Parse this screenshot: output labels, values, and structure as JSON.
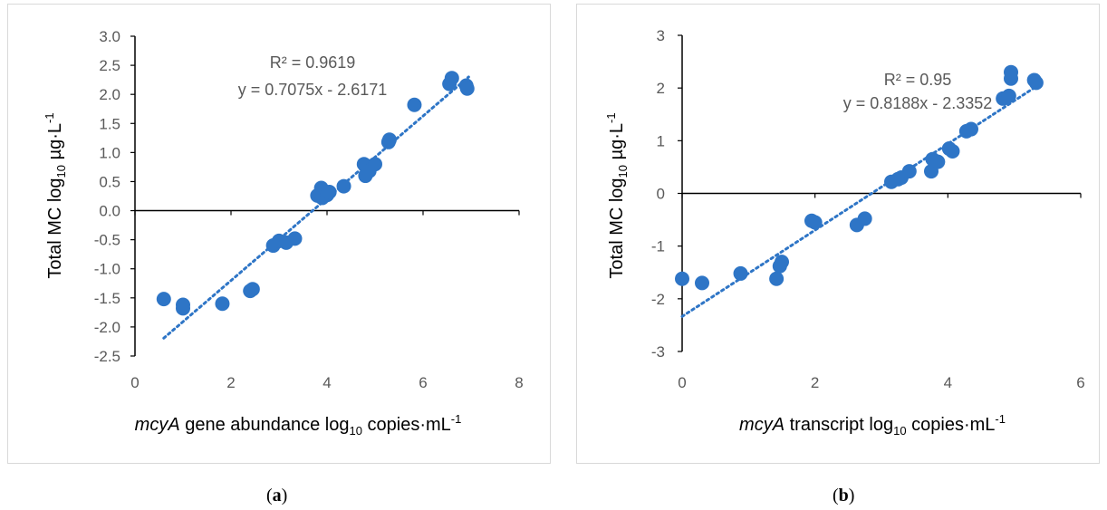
{
  "chart_data": [
    {
      "id": "a",
      "type": "scatter",
      "caption_letter": "a",
      "ylabel": {
        "pre": "Total MC log",
        "sub": "10",
        "mid": " µg·L",
        "sup": "-1"
      },
      "xlabel": {
        "italic": "mcyA",
        "pre": " gene abundance log",
        "sub": "10",
        "mid": " copies·mL",
        "sup": "-1"
      },
      "xlim": [
        0,
        8
      ],
      "ylim": [
        -2.5,
        3.0
      ],
      "xticks": [
        "0",
        "2",
        "4",
        "6",
        "8"
      ],
      "xtick_values": [
        0,
        2,
        4,
        6,
        8
      ],
      "yticks": [
        "3.0",
        "2.5",
        "2.0",
        "1.5",
        "1.0",
        "0.5",
        "0.0",
        "-0.5",
        "-1.0",
        "-1.5",
        "-2.0",
        "-2.5"
      ],
      "ytick_values": [
        3.0,
        2.5,
        2.0,
        1.5,
        1.0,
        0.5,
        0.0,
        -0.5,
        -1.0,
        -1.5,
        -2.0,
        -2.5
      ],
      "r2_text": "R² = 0.9619",
      "equation_text": "y = 0.7075x - 2.6171",
      "trendline": {
        "slope": 0.7075,
        "intercept": -2.6171,
        "x_range": [
          0.6,
          6.95
        ]
      },
      "point_color": "#2e75c6",
      "points": [
        [
          0.6,
          -1.52
        ],
        [
          1.0,
          -1.62
        ],
        [
          1.0,
          -1.68
        ],
        [
          1.82,
          -1.6
        ],
        [
          2.4,
          -1.38
        ],
        [
          2.45,
          -1.35
        ],
        [
          2.88,
          -0.6
        ],
        [
          3.0,
          -0.52
        ],
        [
          3.15,
          -0.55
        ],
        [
          3.33,
          -0.48
        ],
        [
          3.8,
          0.26
        ],
        [
          3.88,
          0.39
        ],
        [
          3.9,
          0.22
        ],
        [
          4.0,
          0.27
        ],
        [
          4.05,
          0.32
        ],
        [
          4.35,
          0.42
        ],
        [
          4.77,
          0.8
        ],
        [
          4.8,
          0.6
        ],
        [
          4.88,
          0.68
        ],
        [
          5.0,
          0.8
        ],
        [
          5.28,
          1.18
        ],
        [
          5.3,
          1.22
        ],
        [
          5.82,
          1.82
        ],
        [
          6.55,
          2.18
        ],
        [
          6.6,
          2.28
        ],
        [
          6.9,
          2.15
        ],
        [
          6.92,
          2.1
        ]
      ]
    },
    {
      "id": "b",
      "type": "scatter",
      "caption_letter": "b",
      "ylabel": {
        "pre": "Total MC log",
        "sub": "10",
        "mid": " µg·L",
        "sup": "-1"
      },
      "xlabel": {
        "italic": "mcyA",
        "pre": " transcript log",
        "sub": "10",
        "mid": " copies·mL",
        "sup": "-1"
      },
      "xlim": [
        0,
        6
      ],
      "ylim": [
        -3,
        3
      ],
      "xticks": [
        "0",
        "2",
        "4",
        "6"
      ],
      "xtick_values": [
        0,
        2,
        4,
        6
      ],
      "yticks": [
        "3",
        "2",
        "1",
        "0",
        "-1",
        "-2",
        "-3"
      ],
      "ytick_values": [
        3,
        2,
        1,
        0,
        -1,
        -2,
        -3
      ],
      "r2_text": "R² = 0.95",
      "equation_text": "y = 0.8188x - 2.3352",
      "trendline": {
        "slope": 0.8188,
        "intercept": -2.3352,
        "x_range": [
          0,
          5.3
        ]
      },
      "point_color": "#2e75c6",
      "points": [
        [
          0.0,
          -1.62
        ],
        [
          0.3,
          -1.7
        ],
        [
          0.88,
          -1.52
        ],
        [
          1.42,
          -1.62
        ],
        [
          1.47,
          -1.38
        ],
        [
          1.5,
          -1.3
        ],
        [
          1.95,
          -0.52
        ],
        [
          2.0,
          -0.55
        ],
        [
          2.63,
          -0.6
        ],
        [
          2.75,
          -0.48
        ],
        [
          3.15,
          0.22
        ],
        [
          3.25,
          0.27
        ],
        [
          3.3,
          0.3
        ],
        [
          3.42,
          0.42
        ],
        [
          3.75,
          0.42
        ],
        [
          3.77,
          0.65
        ],
        [
          3.85,
          0.6
        ],
        [
          4.02,
          0.85
        ],
        [
          4.07,
          0.8
        ],
        [
          4.28,
          1.18
        ],
        [
          4.35,
          1.22
        ],
        [
          4.83,
          1.8
        ],
        [
          4.92,
          1.85
        ],
        [
          4.95,
          2.18
        ],
        [
          4.95,
          2.3
        ],
        [
          5.3,
          2.15
        ],
        [
          5.33,
          2.1
        ]
      ]
    }
  ]
}
